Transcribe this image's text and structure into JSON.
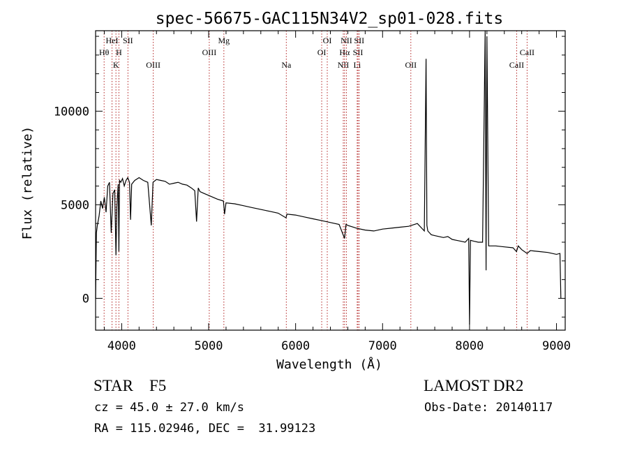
{
  "chart_data": {
    "type": "line",
    "title": "spec-56675-GAC115N34V2_sp01-028.fits",
    "xlabel": "Wavelength (Å)",
    "ylabel": "Flux (relative)",
    "xlim": [
      3700,
      9100
    ],
    "ylim": [
      -1700,
      14300
    ],
    "grid": false,
    "x_ticks": [
      4000,
      5000,
      6000,
      7000,
      8000,
      9000
    ],
    "x_tick_labels": [
      "4000",
      "5000",
      "6000",
      "7000",
      "8000",
      "9000"
    ],
    "y_ticks": [
      0,
      5000,
      10000
    ],
    "y_tick_labels": [
      "0",
      "5000",
      "10000"
    ],
    "series": [
      {
        "x": [
          3700,
          3710,
          3720,
          3740,
          3760,
          3780,
          3800,
          3820,
          3840,
          3860,
          3880,
          3900,
          3920,
          3934,
          3945,
          3960,
          3968,
          3975,
          3990,
          4010,
          4030,
          4050,
          4070,
          4090,
          4102,
          4115,
          4150,
          4200,
          4250,
          4300,
          4340,
          4360,
          4400,
          4450,
          4500,
          4550,
          4600,
          4650,
          4700,
          4750,
          4800,
          4840,
          4861,
          4880,
          4900,
          4950,
          5000,
          5100,
          5170,
          5183,
          5200,
          5300,
          5400,
          5500,
          5600,
          5700,
          5800,
          5890,
          5900,
          6000,
          6100,
          6200,
          6300,
          6400,
          6500,
          6563,
          6580,
          6600,
          6700,
          6800,
          6900,
          7000,
          7100,
          7200,
          7300,
          7400,
          7480,
          7500,
          7510,
          7520,
          7540,
          7560,
          7600,
          7650,
          7700,
          7750,
          7800,
          7850,
          7900,
          7950,
          7990,
          8000,
          8010,
          8050,
          8100,
          8150,
          8180,
          8190,
          8200,
          8220,
          8300,
          8400,
          8500,
          8540,
          8560,
          8600,
          8662,
          8700,
          8800,
          8900,
          9000,
          9040,
          9050
        ],
        "y": [
          0,
          3500,
          3900,
          4400,
          5200,
          4800,
          5400,
          4600,
          6000,
          6200,
          3500,
          5600,
          5800,
          2300,
          4900,
          6100,
          2500,
          6300,
          6200,
          6400,
          6000,
          6300,
          6450,
          6200,
          4200,
          6100,
          6300,
          6450,
          6300,
          6200,
          3900,
          6200,
          6350,
          6300,
          6250,
          6100,
          6150,
          6200,
          6100,
          6050,
          5900,
          5750,
          4100,
          5900,
          5700,
          5600,
          5500,
          5300,
          5200,
          4500,
          5100,
          5050,
          4950,
          4850,
          4750,
          4650,
          4550,
          4300,
          4500,
          4450,
          4350,
          4250,
          4150,
          4050,
          3950,
          3200,
          3950,
          3900,
          3750,
          3650,
          3600,
          3700,
          3750,
          3800,
          3850,
          4000,
          3600,
          12800,
          3900,
          3600,
          3500,
          3400,
          3350,
          3300,
          3250,
          3300,
          3150,
          3100,
          3050,
          3000,
          3200,
          -1400,
          3100,
          3050,
          3000,
          3000,
          14300,
          1500,
          14000,
          2800,
          2800,
          2750,
          2700,
          2500,
          2800,
          2600,
          2400,
          2550,
          2500,
          2450,
          2350,
          2400,
          0
        ]
      }
    ],
    "lines": [
      {
        "name": "Hθ",
        "x": 3798,
        "row": 2
      },
      {
        "name": "HeI",
        "x": 3889,
        "row": 1
      },
      {
        "name": "K",
        "x": 3934,
        "row": 3
      },
      {
        "name": "H",
        "x": 3968,
        "row": 2
      },
      {
        "name": "SII",
        "x": 4072,
        "row": 1
      },
      {
        "name": "OIII",
        "x": 4363,
        "row": 3
      },
      {
        "name": "OIII",
        "x": 5007,
        "row": 2
      },
      {
        "name": "Mg",
        "x": 5175,
        "row": 1
      },
      {
        "name": "Na",
        "x": 5893,
        "row": 3
      },
      {
        "name": "OI",
        "x": 6300,
        "row": 2
      },
      {
        "name": "OI",
        "x": 6364,
        "row": 1
      },
      {
        "name": "NII",
        "x": 6548,
        "row": 3
      },
      {
        "name": "Hα",
        "x": 6563,
        "row": 2
      },
      {
        "name": "NII",
        "x": 6584,
        "row": 1
      },
      {
        "name": "Li",
        "x": 6708,
        "row": 3
      },
      {
        "name": "SII",
        "x": 6717,
        "row": 2
      },
      {
        "name": "SII",
        "x": 6731,
        "row": 1
      },
      {
        "name": "OII",
        "x": 7325,
        "row": 3
      },
      {
        "name": "CaII",
        "x": 8542,
        "row": 3
      },
      {
        "name": "CaII",
        "x": 8662,
        "row": 2
      }
    ]
  },
  "info": {
    "class": "STAR    F5",
    "survey": "LAMOST DR2",
    "cz": "cz = 45.0 ± 27.0 km/s",
    "obs_date": "Obs-Date: 20140117",
    "coords": "RA = 115.02946, DEC =  31.99123"
  },
  "colors": {
    "axis": "#000000",
    "spectrum": "#000000",
    "lines": "#b22222"
  }
}
